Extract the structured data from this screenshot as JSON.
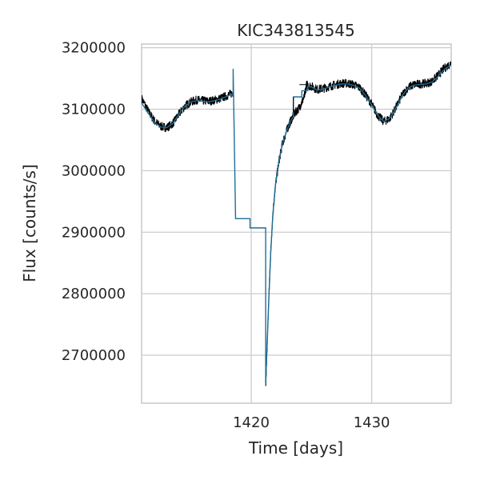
{
  "chart_data": {
    "type": "line",
    "title": "KIC343813545",
    "xlabel": "Time [days]",
    "ylabel": "Flux [counts/s]",
    "xlim": [
      1410.9,
      1436.6
    ],
    "ylim": [
      2622000,
      3206000
    ],
    "x_ticks": [
      1420,
      1430
    ],
    "x_tick_labels": [
      "1420",
      "1430"
    ],
    "y_ticks": [
      2700000,
      2800000,
      2900000,
      3000000,
      3100000,
      3200000
    ],
    "y_tick_labels": [
      "2700000",
      "2800000",
      "2900000",
      "3000000",
      "3100000",
      "3200000"
    ],
    "grid": true,
    "series": [
      {
        "color": "#000000",
        "style": "noisy-line",
        "x": [
          1410.9,
          1411.5,
          1412.0,
          1412.5,
          1413.0,
          1413.5,
          1414.0,
          1414.5,
          1415.0,
          1415.5,
          1416.0,
          1416.5,
          1417.0,
          1417.5,
          1418.0,
          1418.5,
          null,
          1421.2,
          1421.4,
          1421.6,
          1421.8,
          1422.0,
          1422.3,
          1422.6,
          1423.0,
          1423.3,
          1423.6,
          1424.0,
          1424.4,
          1424.6,
          1425.0,
          1425.5,
          1426.0,
          1426.5,
          1427.0,
          1427.5,
          1428.0,
          1428.5,
          1429.0,
          1429.5,
          1430.0,
          1430.5,
          1431.0,
          1431.5,
          1432.0,
          1432.5,
          1433.0,
          1433.5,
          1434.0,
          1434.5,
          1435.0,
          1435.5,
          1436.0,
          1436.6
        ],
        "y": [
          3118000,
          3095000,
          3080000,
          3072000,
          3070000,
          3077000,
          3092000,
          3105000,
          3112000,
          3115000,
          3114000,
          3113000,
          3115000,
          3118000,
          3122000,
          3127000,
          null,
          2650000,
          2760000,
          2860000,
          2930000,
          2975000,
          3015000,
          3045000,
          3068000,
          3082000,
          3093000,
          3103000,
          3120000,
          3140000,
          3137000,
          3132000,
          3134000,
          3137000,
          3140000,
          3142000,
          3142000,
          3140000,
          3135000,
          3123000,
          3108000,
          3090000,
          3080000,
          3085000,
          3102000,
          3122000,
          3135000,
          3140000,
          3141000,
          3142000,
          3145000,
          3155000,
          3166000,
          3175000
        ]
      },
      {
        "color": "#1f6e98",
        "style": "line",
        "x": [
          1410.9,
          1411.5,
          1412.0,
          1412.5,
          1413.0,
          1413.5,
          1414.0,
          1414.5,
          1415.0,
          1415.5,
          1416.0,
          1416.5,
          1417.0,
          1417.5,
          1418.0,
          1418.5,
          1418.5,
          1418.7,
          1418.7,
          1419.9,
          1419.9,
          1421.2,
          1421.2,
          1421.4,
          1421.6,
          1421.8,
          1422.0,
          1422.3,
          1422.6,
          1423.0,
          1423.3,
          1423.5,
          1423.5,
          1424.2,
          1424.2,
          1424.7,
          1424.7,
          1425.0,
          1425.5,
          1426.0,
          1426.5,
          1427.0,
          1427.5,
          1428.0,
          1428.5,
          1429.0,
          1429.5,
          1430.0,
          1430.5,
          1431.0,
          1431.5,
          1432.0,
          1432.5,
          1433.0,
          1433.5,
          1434.0,
          1434.5,
          1435.0,
          1435.5,
          1436.0,
          1436.6
        ],
        "y": [
          3110000,
          3092000,
          3078000,
          3071000,
          3070000,
          3077000,
          3092000,
          3105000,
          3112000,
          3114000,
          3113000,
          3112000,
          3114000,
          3117000,
          3121000,
          3126000,
          3165000,
          2922000,
          2922000,
          2922000,
          2907000,
          2907000,
          2655000,
          2760000,
          2860000,
          2930000,
          2975000,
          3015000,
          3045000,
          3068000,
          3082000,
          3088000,
          3120000,
          3120000,
          3130000,
          3130000,
          3137000,
          3136000,
          3131000,
          3133000,
          3136000,
          3139000,
          3141000,
          3141000,
          3139000,
          3134000,
          3122000,
          3107000,
          3090000,
          3080000,
          3085000,
          3101000,
          3121000,
          3134000,
          3139000,
          3140000,
          3141000,
          3144000,
          3153000,
          3164000,
          3172000
        ]
      }
    ]
  }
}
